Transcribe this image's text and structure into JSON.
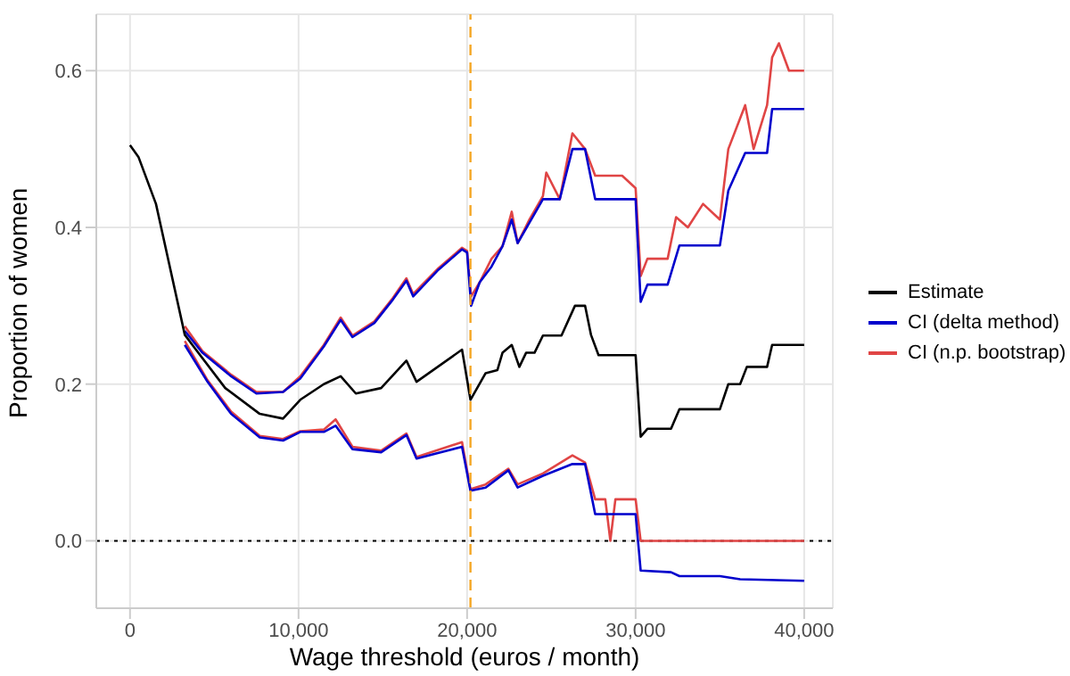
{
  "chart_data": {
    "type": "line",
    "xlabel": "Wage threshold (euros / month)",
    "ylabel": "Proportion of women",
    "xlim": [
      -2000,
      41700
    ],
    "ylim": [
      -0.086,
      0.672
    ],
    "xticks": [
      0,
      {
        "value": 10000,
        "label": "10,000"
      },
      {
        "value": 20000,
        "label": "20,000"
      },
      {
        "value": 30000,
        "label": "30,000"
      },
      {
        "value": 40000,
        "label": "40,000"
      }
    ],
    "yticks": [
      {
        "value": 0,
        "label": "0.0"
      },
      0.2,
      0.4,
      0.6
    ],
    "grid": true,
    "legend": "right",
    "marker": "none",
    "line_style": "solid",
    "ref_lines": [
      {
        "axis": "x",
        "value": 20200,
        "color": "#f5a623",
        "line_style": "dashed"
      },
      {
        "axis": "y",
        "value": 0,
        "color": "#000000",
        "line_style": "dotted"
      }
    ],
    "series": [
      {
        "name": "Estimate",
        "color": "#000000",
        "x": [
          0,
          500,
          1540,
          3250,
          3770,
          5650,
          7700,
          9080,
          10100,
          11500,
          12500,
          13400,
          14900,
          16400,
          17000,
          19700,
          20200,
          21100,
          21800,
          22100,
          22650,
          23100,
          23500,
          24000,
          24500,
          25600,
          26400,
          27000,
          27350,
          27800,
          30000,
          30300,
          30700,
          32100,
          32600,
          35000,
          35500,
          36200,
          36600,
          37800,
          38100,
          40000
        ],
        "values": [
          0.505,
          0.49,
          0.43,
          0.263,
          0.248,
          0.195,
          0.162,
          0.156,
          0.18,
          0.2,
          0.21,
          0.188,
          0.195,
          0.23,
          0.203,
          0.244,
          0.18,
          0.214,
          0.218,
          0.24,
          0.25,
          0.222,
          0.24,
          0.24,
          0.262,
          0.262,
          0.3,
          0.3,
          0.263,
          0.237,
          0.237,
          0.133,
          0.143,
          0.143,
          0.168,
          0.168,
          0.2,
          0.2,
          0.222,
          0.222,
          0.25,
          0.25
        ]
      },
      {
        "name": "CI (delta method)",
        "color": "#0000cc",
        "x": [
          3250,
          4300,
          6000,
          7500,
          9080,
          10100,
          11500,
          12500,
          13200,
          14500,
          15600,
          16400,
          16800,
          18300,
          19700,
          20000,
          20240,
          20750,
          21450,
          22100,
          22650,
          23000,
          23700,
          24500,
          25500,
          26250,
          27000,
          27600,
          30000,
          30300,
          30700,
          31900,
          32600,
          35000,
          35500,
          36500,
          37800,
          38100,
          40000
        ],
        "values": [
          0.268,
          0.24,
          0.21,
          0.188,
          0.19,
          0.207,
          0.248,
          0.282,
          0.26,
          0.278,
          0.308,
          0.332,
          0.312,
          0.346,
          0.372,
          0.368,
          0.3,
          0.33,
          0.35,
          0.376,
          0.41,
          0.38,
          0.406,
          0.436,
          0.436,
          0.5,
          0.5,
          0.436,
          0.436,
          0.305,
          0.327,
          0.327,
          0.377,
          0.377,
          0.447,
          0.495,
          0.495,
          0.551,
          0.551
        ]
      },
      {
        "color": "#0000cc",
        "x": [
          3250,
          4600,
          6000,
          7700,
          9080,
          10100,
          11500,
          12200,
          13200,
          14900,
          16400,
          17000,
          19700,
          20200,
          21100,
          22450,
          23000,
          24500,
          26250,
          27000,
          27600,
          30000,
          30300,
          32100,
          32600,
          35000,
          36200,
          40000
        ],
        "values": [
          0.25,
          0.203,
          0.162,
          0.132,
          0.128,
          0.139,
          0.139,
          0.147,
          0.117,
          0.113,
          0.135,
          0.105,
          0.12,
          0.064,
          0.068,
          0.09,
          0.068,
          0.083,
          0.098,
          0.098,
          0.034,
          0.034,
          -0.038,
          -0.04,
          -0.045,
          -0.045,
          -0.049,
          -0.051
        ]
      },
      {
        "name": "CI (n.p. bootstrap)",
        "color": "#e04545",
        "x": [
          3250,
          4300,
          6000,
          7500,
          9080,
          10100,
          11500,
          12500,
          13200,
          14500,
          15600,
          16400,
          16800,
          18300,
          19700,
          20000,
          20240,
          20750,
          21450,
          22100,
          22650,
          23000,
          23700,
          24500,
          24700,
          25500,
          26250,
          27000,
          27600,
          29200,
          30000,
          30300,
          30700,
          31900,
          32400,
          33100,
          34000,
          35000,
          35500,
          36500,
          37000,
          37800,
          38100,
          38500,
          39100,
          40000
        ],
        "values": [
          0.274,
          0.242,
          0.212,
          0.19,
          0.19,
          0.21,
          0.25,
          0.285,
          0.262,
          0.28,
          0.31,
          0.335,
          0.315,
          0.348,
          0.374,
          0.37,
          0.312,
          0.33,
          0.36,
          0.376,
          0.42,
          0.38,
          0.41,
          0.44,
          0.47,
          0.436,
          0.52,
          0.5,
          0.466,
          0.466,
          0.45,
          0.338,
          0.36,
          0.36,
          0.413,
          0.4,
          0.43,
          0.41,
          0.5,
          0.556,
          0.5,
          0.556,
          0.617,
          0.635,
          0.6,
          0.6
        ]
      },
      {
        "color": "#e04545",
        "x": [
          3250,
          4600,
          6000,
          7700,
          9080,
          10100,
          11500,
          12200,
          13200,
          14900,
          16400,
          17000,
          19700,
          20200,
          21100,
          22450,
          23000,
          24500,
          26250,
          27000,
          27600,
          28200,
          28500,
          28800,
          30000,
          30300,
          40000
        ],
        "values": [
          0.255,
          0.205,
          0.165,
          0.134,
          0.13,
          0.14,
          0.142,
          0.155,
          0.12,
          0.115,
          0.137,
          0.107,
          0.126,
          0.066,
          0.072,
          0.092,
          0.072,
          0.086,
          0.109,
          0.1,
          0.053,
          0.053,
          0,
          0.053,
          0.053,
          0,
          0
        ]
      }
    ]
  }
}
